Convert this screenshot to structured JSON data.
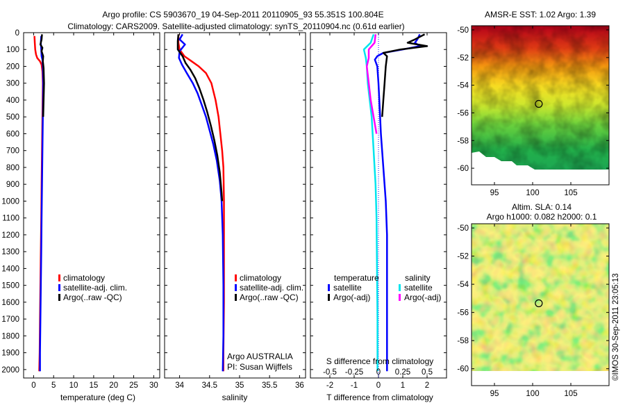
{
  "header": {
    "title_line1": "Argo profile: CS 5903670_19 04-Sep-2011 20110905_93 55.351S 100.804E",
    "title_line2": "Climatology: CARS2009. Satellite-adjusted climatology: synTS_20110904.nc (0.61d earlier)"
  },
  "credit": "©IMOS 30-Sep-2011 23:05:13",
  "colors": {
    "climatology": "#ff0000",
    "satellite": "#0000ff",
    "argo": "#000000",
    "satellite_s": "#00e5ee",
    "argo_s": "#ff00ff",
    "zero_line": "#0000ff"
  },
  "depth_axis": {
    "min": 0,
    "max": 2050,
    "ticks": [
      0,
      100,
      200,
      300,
      400,
      500,
      600,
      700,
      800,
      900,
      1000,
      1100,
      1200,
      1300,
      1400,
      1500,
      1600,
      1700,
      1800,
      1900,
      2000
    ]
  },
  "chart_data": [
    {
      "type": "line",
      "id": "temperature",
      "xlabel": "temperature (deg C)",
      "xlim": [
        -2.5,
        31.5
      ],
      "xticks": [
        0,
        5,
        10,
        15,
        20,
        25,
        30
      ],
      "ylim": [
        2050,
        0
      ],
      "legend": [
        "climatology",
        "satellite-adj. clim.",
        "Argo(..raw -QC)"
      ],
      "series": [
        {
          "name": "climatology",
          "color": "#ff0000",
          "points": [
            [
              0.2,
              20
            ],
            [
              0.3,
              60
            ],
            [
              0.4,
              100
            ],
            [
              0.6,
              130
            ],
            [
              0.9,
              150
            ],
            [
              1.6,
              170
            ],
            [
              2.0,
              190
            ],
            [
              2.2,
              230
            ],
            [
              2.3,
              300
            ],
            [
              2.2,
              500
            ],
            [
              2.1,
              700
            ],
            [
              2.0,
              900
            ],
            [
              1.9,
              1100
            ],
            [
              1.8,
              1300
            ],
            [
              1.7,
              1500
            ],
            [
              1.6,
              1700
            ],
            [
              1.5,
              1900
            ],
            [
              1.4,
              2010
            ]
          ]
        },
        {
          "name": "satellite-adj. clim.",
          "color": "#0000ff",
          "points": [
            [
              1.9,
              20
            ],
            [
              1.8,
              60
            ],
            [
              1.9,
              100
            ],
            [
              2.0,
              140
            ],
            [
              2.2,
              160
            ],
            [
              2.3,
              200
            ],
            [
              2.4,
              300
            ],
            [
              2.3,
              500
            ],
            [
              2.2,
              700
            ],
            [
              2.1,
              900
            ],
            [
              2.0,
              1100
            ],
            [
              1.9,
              1300
            ],
            [
              1.8,
              1500
            ],
            [
              1.7,
              1700
            ],
            [
              1.6,
              1900
            ],
            [
              1.6,
              2010
            ]
          ]
        },
        {
          "name": "Argo(..raw -QC)",
          "color": "#000000",
          "points": [
            [
              2.1,
              10
            ],
            [
              2.0,
              40
            ],
            [
              1.7,
              70
            ],
            [
              2.2,
              90
            ],
            [
              2.0,
              110
            ],
            [
              2.4,
              140
            ],
            [
              2.3,
              170
            ],
            [
              2.5,
              210
            ],
            [
              2.6,
              300
            ],
            [
              2.5,
              400
            ],
            [
              2.4,
              500
            ]
          ]
        }
      ]
    },
    {
      "type": "line",
      "id": "salinity",
      "xlabel": "salinity",
      "xlim": [
        33.75,
        36.1
      ],
      "xticks": [
        34,
        34.5,
        35,
        35.5,
        36
      ],
      "xticklabels": [
        "34",
        "34.5",
        "35",
        "35.5",
        "36"
      ],
      "ylim": [
        2050,
        0
      ],
      "legend": [
        "climatology",
        "satellite-adj. clim.",
        "Argo(..raw -QC)"
      ],
      "annotation": [
        "Argo AUSTRALIA",
        "PI: Susan Wijffels"
      ],
      "series": [
        {
          "name": "climatology",
          "color": "#ff0000",
          "points": [
            [
              33.98,
              10
            ],
            [
              33.98,
              60
            ],
            [
              34.0,
              100
            ],
            [
              34.08,
              140
            ],
            [
              34.2,
              170
            ],
            [
              34.32,
              200
            ],
            [
              34.44,
              240
            ],
            [
              34.53,
              300
            ],
            [
              34.6,
              400
            ],
            [
              34.65,
              500
            ],
            [
              34.68,
              600
            ],
            [
              34.71,
              700
            ],
            [
              34.73,
              800
            ],
            [
              34.74,
              1000
            ],
            [
              34.74,
              1300
            ],
            [
              34.74,
              1600
            ],
            [
              34.73,
              1900
            ],
            [
              34.73,
              2010
            ]
          ]
        },
        {
          "name": "satellite-adj. clim.",
          "color": "#0000ff",
          "points": [
            [
              34.05,
              10
            ],
            [
              34.0,
              40
            ],
            [
              34.09,
              70
            ],
            [
              34.0,
              110
            ],
            [
              33.99,
              150
            ],
            [
              34.04,
              190
            ],
            [
              34.12,
              240
            ],
            [
              34.22,
              300
            ],
            [
              34.3,
              360
            ],
            [
              34.37,
              430
            ],
            [
              34.44,
              500
            ],
            [
              34.5,
              580
            ],
            [
              34.56,
              660
            ],
            [
              34.62,
              760
            ],
            [
              34.67,
              880
            ],
            [
              34.7,
              1000
            ],
            [
              34.72,
              1200
            ],
            [
              34.73,
              1500
            ],
            [
              34.73,
              1800
            ],
            [
              34.72,
              2010
            ]
          ]
        },
        {
          "name": "Argo(..raw -QC)",
          "color": "#000000",
          "points": [
            [
              33.98,
              10
            ],
            [
              33.97,
              50
            ],
            [
              33.97,
              100
            ],
            [
              34.05,
              140
            ],
            [
              34.1,
              180
            ],
            [
              34.18,
              220
            ],
            [
              34.26,
              270
            ],
            [
              34.33,
              330
            ],
            [
              34.4,
              400
            ],
            [
              34.46,
              470
            ],
            [
              34.52,
              550
            ],
            [
              34.58,
              640
            ],
            [
              34.63,
              730
            ],
            [
              34.67,
              830
            ],
            [
              34.7,
              950
            ],
            [
              34.71,
              1000
            ]
          ]
        }
      ]
    },
    {
      "type": "line",
      "id": "differences",
      "xlabel": "T difference from climatology",
      "xlim": [
        -2.8,
        2.8
      ],
      "xticks": [
        -2,
        -1,
        0,
        1,
        2
      ],
      "top_axis_label": "S difference from climatology",
      "top_xticks": [
        -0.5,
        -0.25,
        0,
        0.25,
        0.5
      ],
      "top_xticklabels": [
        "-0.5",
        "-0.25",
        "0",
        "0.25",
        "0.5"
      ],
      "ylim": [
        2050,
        0
      ],
      "legend_groups": [
        {
          "heading": "temperature",
          "items": [
            "satellite",
            "Argo(-adj)"
          ]
        },
        {
          "heading": "salinity",
          "items": [
            "satellite",
            "Argo(-adj)"
          ]
        }
      ],
      "series": [
        {
          "name": "temperature satellite",
          "color": "#0000ff",
          "points": [
            [
              1.7,
              10
            ],
            [
              1.6,
              40
            ],
            [
              1.5,
              60
            ],
            [
              1.7,
              80
            ],
            [
              1.0,
              100
            ],
            [
              0.2,
              120
            ],
            [
              -0.05,
              140
            ],
            [
              -0.15,
              160
            ],
            [
              -0.05,
              200
            ],
            [
              0.0,
              300
            ],
            [
              0.05,
              450
            ],
            [
              0.1,
              600
            ],
            [
              0.2,
              800
            ],
            [
              0.3,
              1000
            ],
            [
              0.35,
              1200
            ],
            [
              0.35,
              1400
            ],
            [
              0.35,
              1600
            ],
            [
              0.35,
              1800
            ],
            [
              0.35,
              2010
            ]
          ]
        },
        {
          "name": "temperature Argo(-adj)",
          "color": "#000000",
          "points": [
            [
              1.9,
              10
            ],
            [
              1.5,
              40
            ],
            [
              1.2,
              60
            ],
            [
              2.0,
              80
            ],
            [
              0.9,
              100
            ],
            [
              0.2,
              120
            ],
            [
              0.35,
              140
            ],
            [
              0.3,
              200
            ],
            [
              0.25,
              300
            ],
            [
              0.2,
              400
            ],
            [
              0.15,
              500
            ]
          ]
        },
        {
          "name": "salinity satellite",
          "color": "#00e5ee",
          "points": [
            [
              -0.05,
              10
            ],
            [
              -0.08,
              60
            ],
            [
              -0.15,
              100
            ],
            [
              -0.13,
              150
            ],
            [
              -0.12,
              200
            ],
            [
              -0.11,
              300
            ],
            [
              -0.09,
              400
            ],
            [
              -0.07,
              500
            ],
            [
              -0.05,
              700
            ],
            [
              -0.03,
              900
            ],
            [
              -0.02,
              1100
            ],
            [
              -0.015,
              1400
            ],
            [
              -0.01,
              1700
            ],
            [
              -0.01,
              2010
            ]
          ]
        },
        {
          "name": "salinity Argo(-adj)",
          "color": "#ff00ff",
          "points": [
            [
              -0.03,
              10
            ],
            [
              -0.04,
              60
            ],
            [
              -0.1,
              100
            ],
            [
              -0.1,
              150
            ],
            [
              -0.12,
              200
            ],
            [
              -0.1,
              300
            ],
            [
              -0.08,
              400
            ],
            [
              -0.05,
              500
            ],
            [
              -0.02,
              600
            ]
          ]
        }
      ]
    }
  ],
  "maps": [
    {
      "id": "sst-map",
      "title": "AMSR-E SST: 1.02 Argo: 1.39",
      "xticks": [
        95,
        100,
        105
      ],
      "yticks": [
        -50,
        -52,
        -54,
        -56,
        -58,
        -60
      ],
      "yticklabels": [
        "-50",
        "-52",
        "-54",
        "-56",
        "-58",
        "-60"
      ],
      "lon_range": [
        92,
        110
      ],
      "lat_range": [
        -61.2,
        -49.7
      ],
      "float_position": [
        100.804,
        -55.351
      ]
    },
    {
      "id": "sla-map",
      "title_line1": "Altim. SLA: 0.14",
      "title_line2": "Argo h1000: 0.082 h2000: 0.1",
      "xticks": [
        95,
        100,
        105
      ],
      "yticks": [
        -50,
        -52,
        -54,
        -56,
        -58,
        -60
      ],
      "yticklabels": [
        "-50",
        "-52",
        "-54",
        "-56",
        "-58",
        "-60"
      ],
      "lon_range": [
        92,
        110
      ],
      "lat_range": [
        -61.2,
        -49.7
      ],
      "float_position": [
        100.804,
        -55.351
      ]
    }
  ]
}
